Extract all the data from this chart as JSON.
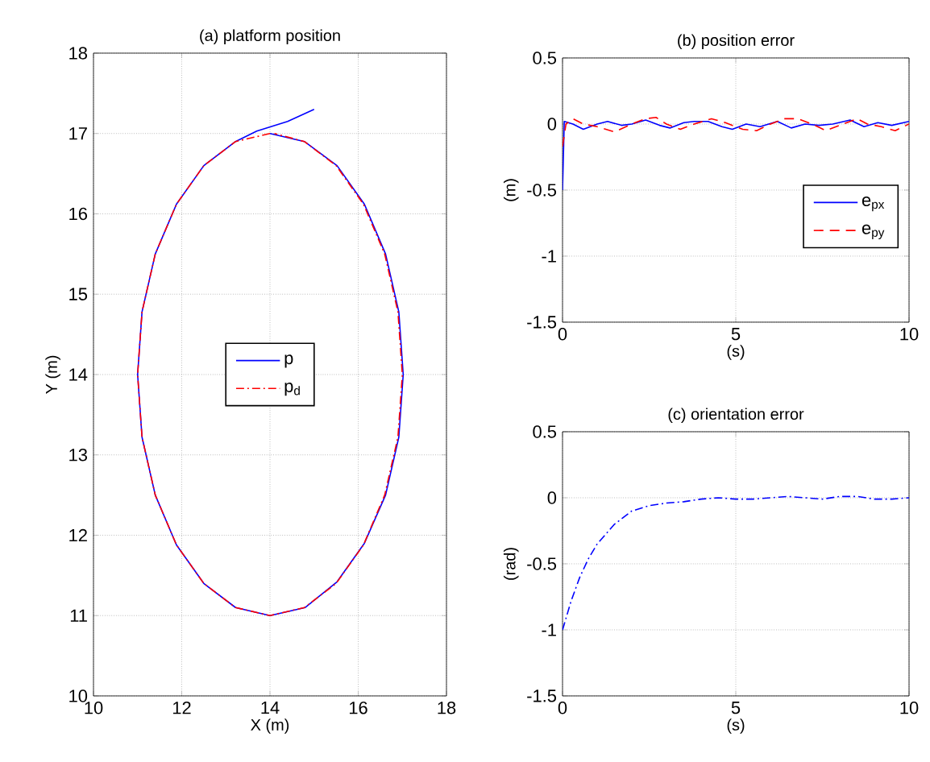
{
  "chart_data": [
    {
      "type": "line",
      "title": "(a) platform position",
      "xlabel": "X (m)",
      "ylabel": "Y (m)",
      "xlim": [
        10,
        18
      ],
      "xticks": [
        10,
        12,
        14,
        16,
        18
      ],
      "ylim": [
        10,
        18
      ],
      "yticks": [
        10,
        11,
        12,
        13,
        14,
        15,
        16,
        17,
        18
      ],
      "grid": true,
      "legend": "center",
      "series": [
        {
          "name": "p",
          "color": "#0000ff",
          "line_style": "solid",
          "x": [
            15,
            14.4,
            13.7,
            13.22,
            12.5,
            11.88,
            11.4,
            11.1,
            11,
            11.1,
            11.4,
            11.88,
            12.5,
            13.22,
            14,
            14.8,
            15.52,
            16.14,
            16.62,
            16.92,
            17.02,
            16.92,
            16.62,
            16.14,
            15.52,
            14.78,
            14
          ],
          "values": [
            17.3,
            17.15,
            17.03,
            16.9,
            16.6,
            16.12,
            15.5,
            14.78,
            14,
            13.22,
            12.5,
            11.88,
            11.4,
            11.1,
            11,
            11.1,
            11.42,
            11.9,
            12.5,
            13.22,
            14,
            14.78,
            15.5,
            16.12,
            16.6,
            16.9,
            17
          ]
        },
        {
          "name": "p$_{d}$",
          "color": "#ff0000",
          "line_style": "dashdot",
          "x": [
            14,
            13.22,
            12.5,
            11.88,
            11.4,
            11.1,
            11,
            11.1,
            11.4,
            11.88,
            12.5,
            13.22,
            14,
            14.78,
            15.5,
            16.12,
            16.6,
            16.9,
            17,
            16.9,
            16.6,
            16.12,
            15.5,
            14.78,
            14.1
          ],
          "values": [
            17,
            16.9,
            16.6,
            16.12,
            15.5,
            14.78,
            14,
            13.22,
            12.5,
            11.88,
            11.4,
            11.1,
            11,
            11.1,
            11.4,
            11.88,
            12.5,
            13.22,
            14,
            14.78,
            15.5,
            16.12,
            16.6,
            16.9,
            17
          ]
        }
      ]
    },
    {
      "type": "line",
      "title": "(b) position error",
      "xlabel": "(s)",
      "ylabel": "(m)",
      "xlim": [
        0,
        10
      ],
      "xticks": [
        0,
        5,
        10
      ],
      "ylim": [
        -1.5,
        0.5
      ],
      "yticks": [
        -1.5,
        -1,
        -0.5,
        0,
        0.5
      ],
      "grid": true,
      "legend": "right",
      "series": [
        {
          "name": "e$_{px}$",
          "color": "#0000ff",
          "line_style": "solid",
          "x": [
            0,
            0.05,
            0.3,
            0.6,
            1.0,
            1.3,
            1.7,
            2.0,
            2.4,
            2.8,
            3.1,
            3.5,
            3.8,
            4.2,
            4.6,
            4.9,
            5.3,
            5.7,
            6.2,
            6.6,
            7.0,
            7.4,
            7.8,
            8.3,
            8.7,
            9.1,
            9.5,
            10
          ],
          "values": [
            -0.5,
            0.02,
            0.0,
            -0.04,
            0.0,
            0.02,
            -0.01,
            0.0,
            0.03,
            -0.01,
            -0.03,
            0.01,
            0.02,
            0.02,
            -0.02,
            -0.04,
            0.0,
            -0.02,
            0.02,
            -0.03,
            0.0,
            -0.01,
            0.0,
            0.03,
            -0.02,
            0.01,
            -0.01,
            0.02
          ]
        },
        {
          "name": "e$_{py}$",
          "color": "#ff0000",
          "line_style": "dashed",
          "x": [
            0,
            0.1,
            0.3,
            0.6,
            1.0,
            1.5,
            2.0,
            2.4,
            2.7,
            3.0,
            3.4,
            3.8,
            4.3,
            4.7,
            5.2,
            5.6,
            6.0,
            6.4,
            6.8,
            7.2,
            7.6,
            8.0,
            8.5,
            8.8,
            9.2,
            9.6,
            10
          ],
          "values": [
            -0.17,
            0.0,
            0.04,
            0.0,
            -0.02,
            -0.06,
            0.0,
            0.04,
            0.05,
            0.0,
            -0.04,
            0.0,
            0.04,
            0.01,
            -0.04,
            -0.05,
            0.0,
            0.04,
            0.04,
            0.0,
            -0.05,
            -0.01,
            0.04,
            0.0,
            -0.02,
            -0.05,
            0.0
          ]
        }
      ]
    },
    {
      "type": "line",
      "title": "(c) orientation error",
      "xlabel": "(s)",
      "ylabel": "(rad)",
      "xlim": [
        0,
        10
      ],
      "xticks": [
        0,
        5,
        10
      ],
      "ylim": [
        -1.5,
        0.5
      ],
      "yticks": [
        -1.5,
        -1,
        -0.5,
        0,
        0.5
      ],
      "grid": true,
      "series": [
        {
          "color": "#0000ff",
          "line_style": "dashdot",
          "x": [
            0,
            0.25,
            0.5,
            0.75,
            1.0,
            1.5,
            2.0,
            2.5,
            3.0,
            3.5,
            4.0,
            4.5,
            5.0,
            5.5,
            6.0,
            6.5,
            7.0,
            7.5,
            8.0,
            8.5,
            9.0,
            9.5,
            10
          ],
          "values": [
            -1,
            -0.78,
            -0.6,
            -0.46,
            -0.35,
            -0.2,
            -0.1,
            -0.06,
            -0.04,
            -0.03,
            -0.01,
            0.0,
            -0.01,
            -0.01,
            0.0,
            0.01,
            0.0,
            -0.01,
            0.01,
            0.01,
            -0.01,
            -0.01,
            0.0
          ]
        }
      ]
    }
  ]
}
